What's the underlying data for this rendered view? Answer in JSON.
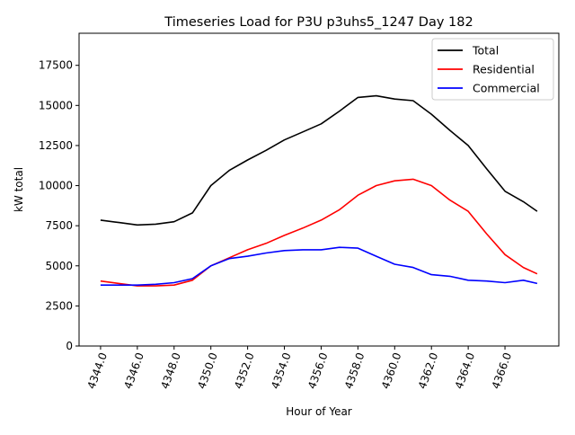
{
  "chart_data": {
    "type": "line",
    "title": "Timeseries Load for P3U p3uhs5_1247  Day 182",
    "xlabel": "Hour of Year",
    "ylabel": "kW total",
    "xlim": [
      4342.83,
      4368.93
    ],
    "ylim": [
      0,
      19500
    ],
    "xticks": [
      4344,
      4346,
      4348,
      4350,
      4352,
      4354,
      4356,
      4358,
      4360,
      4362,
      4364,
      4366
    ],
    "xtick_labels": [
      "4344.0",
      "4346.0",
      "4348.0",
      "4350.0",
      "4352.0",
      "4354.0",
      "4356.0",
      "4358.0",
      "4360.0",
      "4362.0",
      "4364.0",
      "4366.0"
    ],
    "yticks": [
      0,
      2500,
      5000,
      7500,
      10000,
      12500,
      15000,
      17500
    ],
    "ytick_labels": [
      "0",
      "2500",
      "5000",
      "7500",
      "10000",
      "12500",
      "15000",
      "17500"
    ],
    "legend_placement": "top-right",
    "grid": false,
    "x": [
      4344,
      4345,
      4346,
      4347,
      4348,
      4349,
      4350,
      4351,
      4352,
      4353,
      4354,
      4355,
      4356,
      4357,
      4358,
      4359,
      4360,
      4361,
      4362,
      4363,
      4364,
      4365,
      4366,
      4367,
      4367.75
    ],
    "series": [
      {
        "name": "Total",
        "color": "#000000",
        "values": [
          7850,
          7700,
          7550,
          7600,
          7750,
          8300,
          10000,
          10950,
          11600,
          12200,
          12850,
          13350,
          13850,
          14650,
          15500,
          15600,
          15400,
          15300,
          14450,
          13450,
          12500,
          11050,
          9650,
          9000,
          8400
        ]
      },
      {
        "name": "Residential",
        "color": "#ff0000",
        "values": [
          4050,
          3900,
          3750,
          3750,
          3800,
          4100,
          5000,
          5500,
          6000,
          6400,
          6900,
          7350,
          7850,
          8500,
          9400,
          10000,
          10300,
          10400,
          10000,
          9100,
          8400,
          7000,
          5700,
          4900,
          4500
        ]
      },
      {
        "name": "Commercial",
        "color": "#0000ff",
        "values": [
          3800,
          3800,
          3800,
          3850,
          3950,
          4200,
          5000,
          5450,
          5600,
          5800,
          5950,
          6000,
          6000,
          6150,
          6100,
          5600,
          5100,
          4900,
          4450,
          4350,
          4100,
          4050,
          3950,
          4100,
          3900
        ]
      }
    ]
  }
}
